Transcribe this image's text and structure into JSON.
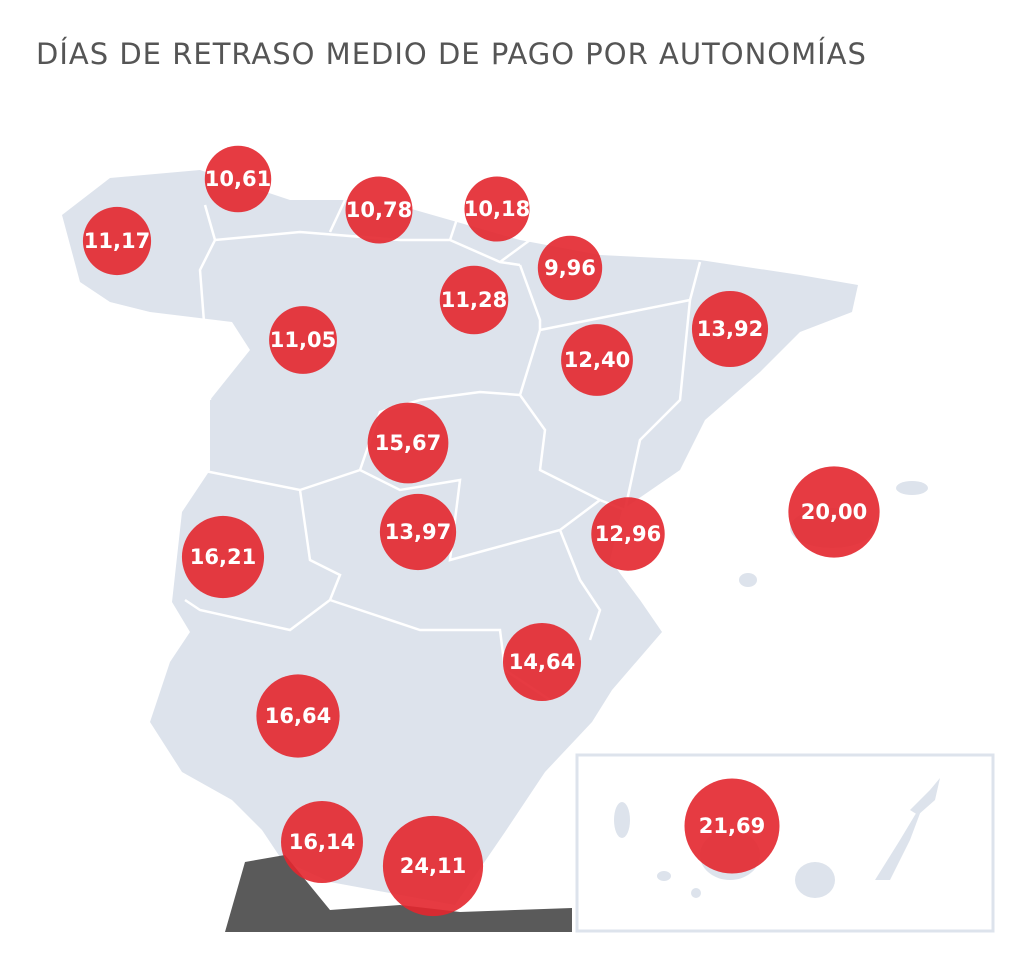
{
  "title": "DÍAS DE RETRASO MEDIO DE PAGO POR AUTONOMÍAS",
  "bubbles": [
    {
      "value": 11.17,
      "label": "11,17"
    },
    {
      "value": 10.61,
      "label": "10,61"
    },
    {
      "value": 10.78,
      "label": "10,78"
    },
    {
      "value": 10.18,
      "label": "10,18"
    },
    {
      "value": 9.96,
      "label": "9,96"
    },
    {
      "value": 11.28,
      "label": "11,28"
    },
    {
      "value": 11.05,
      "label": "11,05"
    },
    {
      "value": 13.92,
      "label": "13,92"
    },
    {
      "value": 12.4,
      "label": "12,40"
    },
    {
      "value": 15.67,
      "label": "15,67"
    },
    {
      "value": 13.97,
      "label": "13,97"
    },
    {
      "value": 16.21,
      "label": "16,21"
    },
    {
      "value": 12.96,
      "label": "12,96"
    },
    {
      "value": 20.0,
      "label": "20,00"
    },
    {
      "value": 14.64,
      "label": "14,64"
    },
    {
      "value": 16.64,
      "label": "16,64"
    },
    {
      "value": 16.14,
      "label": "16,14"
    },
    {
      "value": 24.11,
      "label": "24,11"
    },
    {
      "value": 21.69,
      "label": "21,69"
    }
  ]
}
